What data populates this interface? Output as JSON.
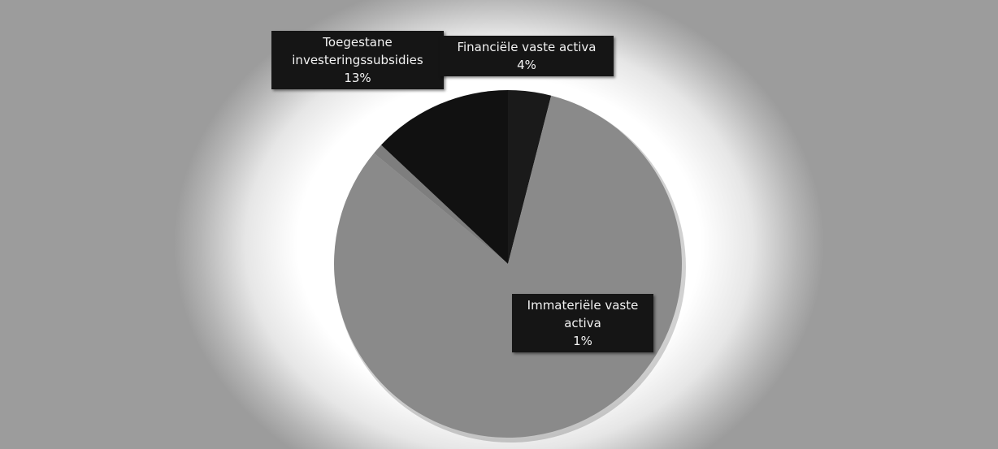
{
  "chart_data": {
    "type": "pie",
    "title": "",
    "slices": [
      {
        "label": "Financiële vaste activa",
        "value": 4,
        "value_label": "4%",
        "color": "#1a1a1a"
      },
      {
        "label": "",
        "value": 82,
        "value_label": "",
        "color": "#8a8a8a"
      },
      {
        "label": "Immateriële vaste activa",
        "value": 1,
        "value_label": "1%",
        "color": "#7e7e7e"
      },
      {
        "label": "Toegestane investeringssubsidies",
        "value": 13,
        "value_label": "13%",
        "color": "#111111"
      }
    ],
    "legend": "none",
    "start_angle": "12 o'clock, clockwise",
    "label_box_color": "#151515",
    "label_text_color": "#f2f2f2"
  }
}
